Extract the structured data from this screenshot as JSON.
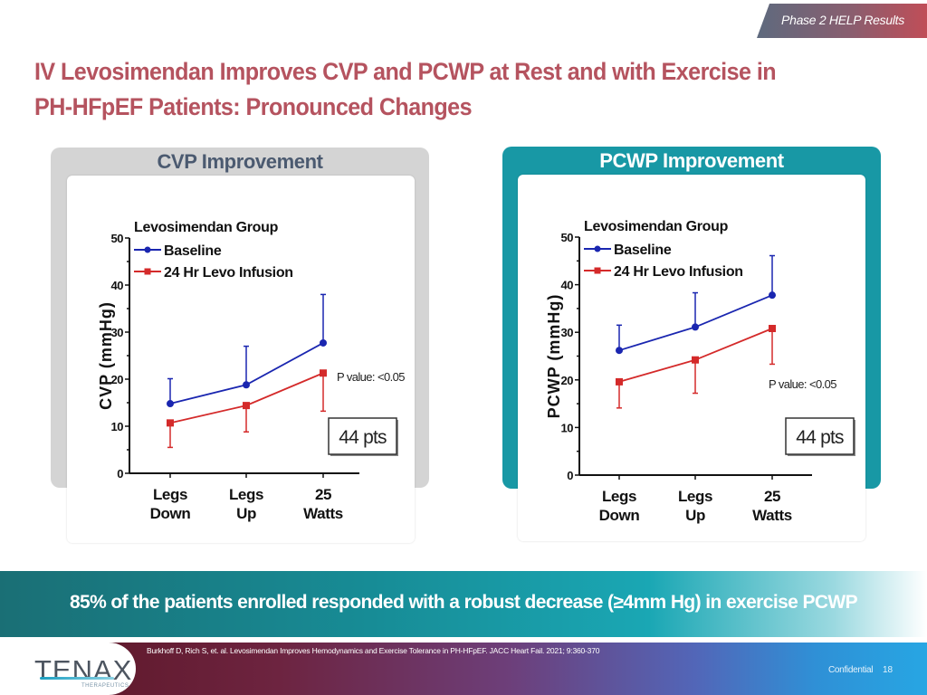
{
  "header": {
    "section_tag": "Phase 2 HELP Results",
    "title_line1": "IV Levosimendan Improves CVP and PCWP at Rest and with Exercise in",
    "title_line2": "PH-HFpEF Patients: Pronounced Changes"
  },
  "panels": {
    "cvp": {
      "title": "CVP Improvement"
    },
    "pcwp": {
      "title": "PCWP Improvement"
    }
  },
  "colors": {
    "baseline": "#1a26b0",
    "levo": "#d42a2a",
    "title": "#b5535f",
    "teal": "#1898a5"
  },
  "chart_data": [
    {
      "type": "line",
      "title": "CVP Improvement",
      "legend_title": "Levosimendan Group",
      "legend_position": "top-left",
      "categories": [
        "Legs Down",
        "Legs Up",
        "25 Watts"
      ],
      "category_lines": [
        [
          "Legs",
          "Down"
        ],
        [
          "Legs",
          "Up"
        ],
        [
          "25",
          "Watts"
        ]
      ],
      "ylabel": "CVP (mmHg)",
      "xlabel": "",
      "ylim": [
        0,
        50
      ],
      "yticks": [
        0,
        10,
        20,
        30,
        40,
        50
      ],
      "grid": false,
      "series": [
        {
          "name": "Baseline",
          "marker": "circle",
          "values": [
            14.8,
            18.8,
            27.7
          ],
          "error_upper": [
            20.1,
            27.0,
            38.0
          ]
        },
        {
          "name": "24 Hr Levo Infusion",
          "marker": "square",
          "values": [
            10.7,
            14.4,
            21.3
          ],
          "error_lower": [
            5.5,
            8.8,
            13.2
          ]
        }
      ],
      "annotations": {
        "p_value": "P value: <0.05",
        "n_box": "44 pts"
      }
    },
    {
      "type": "line",
      "title": "PCWP Improvement",
      "legend_title": "Levosimendan Group",
      "legend_position": "top-left",
      "categories": [
        "Legs Down",
        "Legs Up",
        "25 Watts"
      ],
      "category_lines": [
        [
          "Legs",
          "Down"
        ],
        [
          "Legs",
          "Up"
        ],
        [
          "25",
          "Watts"
        ]
      ],
      "ylabel": "PCWP (mmHg)",
      "xlabel": "",
      "ylim": [
        0,
        50
      ],
      "yticks": [
        0,
        10,
        20,
        30,
        40,
        50
      ],
      "grid": false,
      "series": [
        {
          "name": "Baseline",
          "marker": "circle",
          "values": [
            26.2,
            31.1,
            37.8
          ],
          "error_upper": [
            31.5,
            38.3,
            46.1
          ]
        },
        {
          "name": "24 Hr Levo Infusion",
          "marker": "square",
          "values": [
            19.6,
            24.2,
            30.8
          ],
          "error_lower": [
            14.1,
            17.2,
            23.3
          ]
        }
      ],
      "annotations": {
        "p_value": "P value: <0.05",
        "n_box": "44 pts"
      }
    }
  ],
  "banner": {
    "text": "85% of the patients enrolled responded with a robust decrease (≥4mm Hg) in exercise PCWP"
  },
  "footer": {
    "logo_text": "TENAX",
    "logo_subtext": "THERAPEUTICS",
    "citation": "Burkhoff D, Rich S, et. al. Levosimendan  Improves Hemodynamics  and Exercise Tolerance in PH-HFpEF.  JACC Heart Fail. 2021; 9:360-370",
    "confidential": "Confidential",
    "page_number": "18"
  }
}
